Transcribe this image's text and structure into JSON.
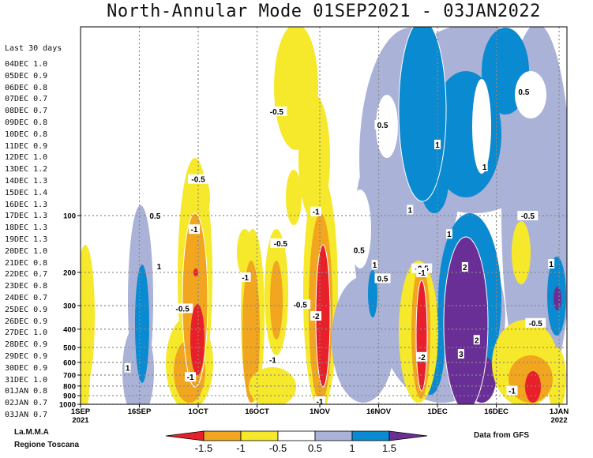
{
  "title": "North-Annular Mode 01SEP2021 - 03JAN2022",
  "sidebar": {
    "heading": "Last 30 days",
    "rows": [
      {
        "date": "04DEC",
        "value": "1.0"
      },
      {
        "date": "05DEC",
        "value": "0.9"
      },
      {
        "date": "06DEC",
        "value": "0.8"
      },
      {
        "date": "07DEC",
        "value": "0.7"
      },
      {
        "date": "08DEC",
        "value": "0.7"
      },
      {
        "date": "09DEC",
        "value": "0.8"
      },
      {
        "date": "10DEC",
        "value": "0.8"
      },
      {
        "date": "11DEC",
        "value": "0.9"
      },
      {
        "date": "12DEC",
        "value": "1.0"
      },
      {
        "date": "13DEC",
        "value": "1.2"
      },
      {
        "date": "14DEC",
        "value": "1.3"
      },
      {
        "date": "15DEC",
        "value": "1.4"
      },
      {
        "date": "16DEC",
        "value": "1.3"
      },
      {
        "date": "17DEC",
        "value": "1.3"
      },
      {
        "date": "18DEC",
        "value": "1.3"
      },
      {
        "date": "19DEC",
        "value": "1.3"
      },
      {
        "date": "20DEC",
        "value": "1.0"
      },
      {
        "date": "21DEC",
        "value": "0.8"
      },
      {
        "date": "22DEC",
        "value": "0.7"
      },
      {
        "date": "23DEC",
        "value": "0.8"
      },
      {
        "date": "24DEC",
        "value": "0.7"
      },
      {
        "date": "25DEC",
        "value": "0.9"
      },
      {
        "date": "26DEC",
        "value": "0.9"
      },
      {
        "date": "27DEC",
        "value": "1.0"
      },
      {
        "date": "28DEC",
        "value": "0.9"
      },
      {
        "date": "29DEC",
        "value": "0.9"
      },
      {
        "date": "30DEC",
        "value": "0.9"
      },
      {
        "date": "31DEC",
        "value": "1.0"
      },
      {
        "date": "01JAN",
        "value": "0.8"
      },
      {
        "date": "02JAN",
        "value": "0.7"
      },
      {
        "date": "03JAN",
        "value": "0.7"
      }
    ]
  },
  "footer": {
    "org_line1": "La.M.M.A",
    "org_line2": "Regione Toscana",
    "source": "Data from GFS"
  },
  "colors": {
    "lt_m15": "#e8202a",
    "m15_m1": "#f2a51f",
    "m1_m05": "#f6e82a",
    "m05_05": "#ffffff",
    "p05_1": "#aab2d8",
    "p1_15": "#0a8ad0",
    "gt_15": "#6a2f96"
  },
  "chart_data": {
    "type": "heatmap",
    "title": "North-Annular Mode 01SEP2021 - 03JAN2022",
    "x_ticks": [
      {
        "date": "2021-09-01",
        "label": "1SEP",
        "sublabel": "2021"
      },
      {
        "date": "2021-09-16",
        "label": "16SEP"
      },
      {
        "date": "2021-10-01",
        "label": "1OCT"
      },
      {
        "date": "2021-10-16",
        "label": "16OCT"
      },
      {
        "date": "2021-11-01",
        "label": "1NOV"
      },
      {
        "date": "2021-11-16",
        "label": "16NOV"
      },
      {
        "date": "2021-12-01",
        "label": "1DEC"
      },
      {
        "date": "2021-12-16",
        "label": "16DEC"
      },
      {
        "date": "2022-01-01",
        "label": "1JAN",
        "sublabel": "2022"
      }
    ],
    "xlim": [
      "2021-09-01",
      "2022-01-03"
    ],
    "y_ticks": [
      "100",
      "200",
      "300",
      "400",
      "500",
      "600",
      "700",
      "800",
      "900",
      "1000"
    ],
    "y_scale": "log-pressure (hPa), decreasing upward",
    "ylim": [
      1000,
      10
    ],
    "grid": true,
    "colorbar": {
      "labels": [
        "-1.5",
        "-1",
        "-0.5",
        "0.5",
        "1",
        "1.5"
      ],
      "bins": [
        "lt_m15",
        "m15_m1",
        "m1_m05",
        "m05_05",
        "p05_1",
        "p1_15",
        "gt_15"
      ]
    },
    "contour_labels": [
      {
        "text": "0.5",
        "date": "2021-09-20",
        "p": 100
      },
      {
        "text": "1",
        "date": "2021-09-21",
        "p": 185
      },
      {
        "text": "1",
        "date": "2021-09-13",
        "p": 640
      },
      {
        "text": "-0.5",
        "date": "2021-10-01",
        "p": 64
      },
      {
        "text": "-1",
        "date": "2021-09-30",
        "p": 118
      },
      {
        "text": "-0.5",
        "date": "2021-09-27",
        "p": 310
      },
      {
        "text": "-1",
        "date": "2021-09-29",
        "p": 715
      },
      {
        "text": "-1",
        "date": "2021-10-13",
        "p": 212
      },
      {
        "text": "-0.5",
        "date": "2021-10-22",
        "p": 140
      },
      {
        "text": "-1",
        "date": "2021-10-20",
        "p": 580
      },
      {
        "text": "-0.5",
        "date": "2021-10-27",
        "p": 295
      },
      {
        "text": "-0.5",
        "date": "2021-10-21",
        "p": 28
      },
      {
        "text": "-1",
        "date": "2021-10-31",
        "p": 95
      },
      {
        "text": "-2",
        "date": "2021-10-31",
        "p": 340
      },
      {
        "text": "-1",
        "date": "2021-11-01",
        "p": 1000
      },
      {
        "text": "0.5",
        "date": "2021-11-11",
        "p": 152
      },
      {
        "text": "0.5",
        "date": "2021-11-17",
        "p": 33
      },
      {
        "text": "1",
        "date": "2021-11-15",
        "p": 182
      },
      {
        "text": "0.5",
        "date": "2021-11-17",
        "p": 215
      },
      {
        "text": "1",
        "date": "2021-11-24",
        "p": 93
      },
      {
        "text": "-0.5",
        "date": "2021-11-27",
        "p": 190
      },
      {
        "text": "-1",
        "date": "2021-11-27",
        "p": 200
      },
      {
        "text": "-2",
        "date": "2021-11-27",
        "p": 560
      },
      {
        "text": "1",
        "date": "2021-12-01",
        "p": 42
      },
      {
        "text": "1",
        "date": "2021-12-04",
        "p": 125
      },
      {
        "text": "2",
        "date": "2021-12-08",
        "p": 187
      },
      {
        "text": "3",
        "date": "2021-12-07",
        "p": 540
      },
      {
        "text": "2",
        "date": "2021-12-11",
        "p": 455
      },
      {
        "text": "1",
        "date": "2021-12-13",
        "p": 55
      },
      {
        "text": "0.5",
        "date": "2021-12-23",
        "p": 22
      },
      {
        "text": "-0.5",
        "date": "2021-12-24",
        "p": 100
      },
      {
        "text": "-1",
        "date": "2021-12-20",
        "p": 845
      },
      {
        "text": "-0.5",
        "date": "2021-12-26",
        "p": 370
      },
      {
        "text": "1",
        "date": "2021-12-30",
        "p": 180
      }
    ]
  }
}
